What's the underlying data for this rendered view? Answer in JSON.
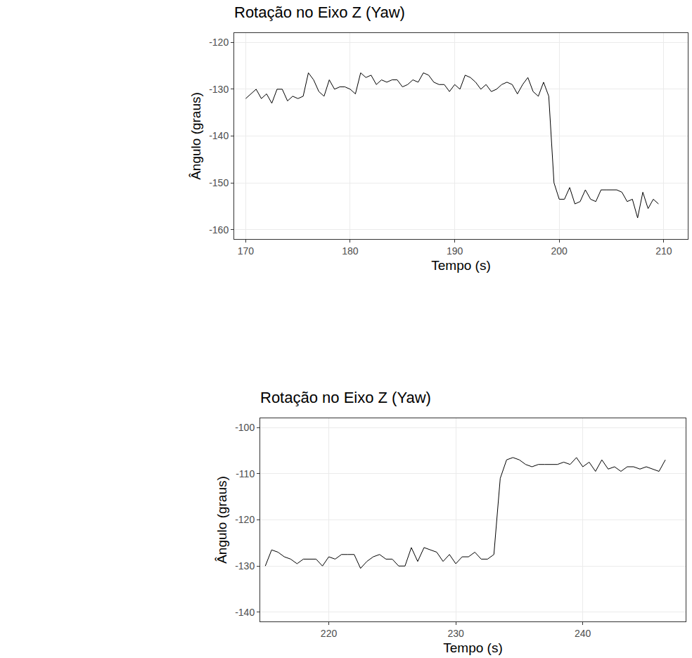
{
  "chart_data": [
    {
      "type": "line",
      "title": "Rotação no Eixo Z (Yaw)",
      "x_label": "Tempo (s)",
      "y_label": "Ângulo (graus)",
      "x": [
        170,
        170.5,
        171,
        171.5,
        172,
        172.5,
        173,
        173.5,
        174,
        174.5,
        175,
        175.5,
        176,
        176.5,
        177,
        177.5,
        178,
        178.5,
        179,
        179.5,
        180,
        180.5,
        181,
        181.5,
        182,
        182.5,
        183,
        183.5,
        184,
        184.5,
        185,
        185.5,
        186,
        186.5,
        187,
        187.5,
        188,
        188.5,
        189,
        189.5,
        190,
        190.5,
        191,
        191.5,
        192,
        192.5,
        193,
        193.5,
        194,
        194.5,
        195,
        195.5,
        196,
        196.5,
        197,
        197.5,
        198,
        198.5,
        199,
        199.5,
        200,
        200.5,
        201,
        201.5,
        202,
        202.5,
        203,
        203.5,
        204,
        204.5,
        205,
        205.5,
        206,
        206.5,
        207,
        207.5,
        208,
        208.5,
        209,
        209.5
      ],
      "values": [
        -132,
        -131,
        -130,
        -132,
        -131,
        -133,
        -130,
        -130,
        -132.5,
        -131.5,
        -132,
        -131.5,
        -126.5,
        -128,
        -130.5,
        -131.5,
        -128,
        -130,
        -129.5,
        -129.5,
        -130,
        -131,
        -126.5,
        -127.5,
        -127,
        -129,
        -128,
        -128.5,
        -128,
        -128,
        -129.5,
        -129,
        -128,
        -128.5,
        -126.5,
        -127,
        -128.5,
        -129,
        -129,
        -130.5,
        -129,
        -130,
        -127,
        -127.5,
        -128.5,
        -130,
        -129,
        -130.5,
        -130,
        -129,
        -128.5,
        -129,
        -131,
        -129,
        -127.5,
        -130.5,
        -131.5,
        -128.5,
        -131.5,
        -150,
        -153.5,
        -153.5,
        -151,
        -154.5,
        -154,
        -151.5,
        -153.5,
        -154,
        -151.5,
        -151.5,
        -151.5,
        -151.5,
        -152,
        -154,
        -153.5,
        -157.5,
        -152,
        -155.5,
        -153.5,
        -154.5
      ],
      "color": "#000000",
      "xlim": [
        168.9,
        212.3
      ],
      "xticks": [
        170,
        180,
        190,
        200,
        210
      ],
      "ylim": [
        -162,
        -118
      ],
      "yticks": [
        -160,
        -150,
        -140,
        -130,
        -120
      ],
      "grid": true
    },
    {
      "type": "line",
      "title": "Rotação no Eixo Z (Yaw)",
      "x_label": "Tempo (s)",
      "y_label": "Ângulo (graus)",
      "x": [
        215,
        215.5,
        216,
        216.5,
        217,
        217.5,
        218,
        218.5,
        219,
        219.5,
        220,
        220.5,
        221,
        221.5,
        222,
        222.5,
        223,
        223.5,
        224,
        224.5,
        225,
        225.5,
        226,
        226.5,
        227,
        227.5,
        228,
        228.5,
        229,
        229.5,
        230,
        230.5,
        231,
        231.5,
        232,
        232.5,
        233,
        233.5,
        234,
        234.5,
        235,
        235.5,
        236,
        236.5,
        237,
        237.5,
        238,
        238.5,
        239,
        239.5,
        240,
        240.5,
        241,
        241.5,
        242,
        242.5,
        243,
        243.5,
        244,
        244.5,
        245,
        245.5,
        246,
        246.5
      ],
      "values": [
        -130,
        -126.5,
        -127,
        -128,
        -128.5,
        -129.5,
        -128.5,
        -128.5,
        -128.5,
        -130,
        -128,
        -128.5,
        -127.5,
        -127.5,
        -127.5,
        -130.5,
        -129,
        -128,
        -127.5,
        -128.5,
        -128.5,
        -130,
        -130,
        -126,
        -129,
        -126,
        -126.5,
        -127,
        -129,
        -127.5,
        -129.5,
        -128,
        -128,
        -127,
        -128.5,
        -128.5,
        -127.5,
        -111,
        -107,
        -106.5,
        -107,
        -108,
        -108.5,
        -108,
        -108,
        -108,
        -108,
        -107.5,
        -108,
        -106.5,
        -108.5,
        -107.5,
        -109.5,
        -107,
        -109,
        -108.5,
        -109.5,
        -108.5,
        -108.5,
        -109,
        -108.5,
        -109,
        -109.5,
        -107
      ],
      "color": "#000000",
      "xlim": [
        214.6,
        248.1
      ],
      "xticks": [
        220,
        230,
        240
      ],
      "ylim": [
        -142,
        -98
      ],
      "yticks": [
        -140,
        -130,
        -120,
        -110,
        -100
      ],
      "grid": true
    }
  ]
}
